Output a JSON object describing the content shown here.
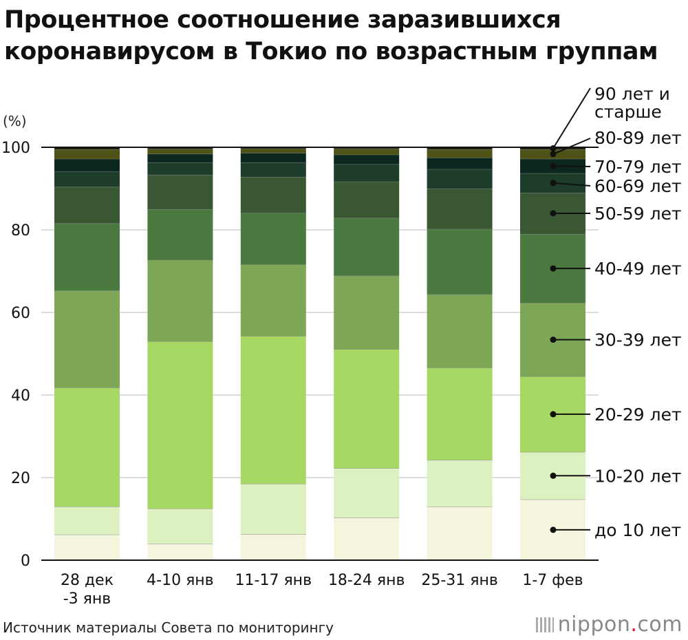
{
  "title_lines": [
    "Процентное соотношение заразившихся",
    "коронавирусом в Токио по возрастным группам"
  ],
  "source": "Источник материалы Совета по мониторингу",
  "logo": {
    "name": "nippon",
    "dot": ".",
    "suffix": "com"
  },
  "chart_data": {
    "type": "stacked-bar",
    "ylabel": "(%)",
    "ylim": [
      0,
      100
    ],
    "yticks": [
      0,
      20,
      40,
      60,
      80,
      100
    ],
    "grid": true,
    "legend": "right, inline labels",
    "categories": [
      [
        "28 дек",
        "-3 янв"
      ],
      [
        "4-10 янв"
      ],
      [
        "11-17 янв"
      ],
      [
        "18-24 янв"
      ],
      [
        "25-31 янв"
      ],
      [
        "1-7 фев"
      ]
    ],
    "series": [
      {
        "name": "до 10 лет",
        "color": "#f5f4dc",
        "values": [
          6.2,
          4.0,
          6.3,
          10.3,
          13.0,
          14.7
        ]
      },
      {
        "name": "10-20 лет",
        "color": "#ddf0c0",
        "values": [
          6.8,
          8.5,
          12.2,
          12.0,
          11.3,
          11.5
        ]
      },
      {
        "name": "20-29 лет",
        "color": "#a8d864",
        "values": [
          28.8,
          40.5,
          35.8,
          28.8,
          22.3,
          18.3
        ]
      },
      {
        "name": "30-39 лет",
        "color": "#7da756",
        "values": [
          23.5,
          19.7,
          17.3,
          17.8,
          17.8,
          17.8
        ]
      },
      {
        "name": "40-49 лет",
        "color": "#4a7a3f",
        "values": [
          16.3,
          12.3,
          12.5,
          14.0,
          15.8,
          16.7
        ]
      },
      {
        "name": "50-59 лет",
        "color": "#385732",
        "values": [
          8.8,
          8.3,
          8.7,
          8.8,
          9.8,
          10.0
        ]
      },
      {
        "name": "60-69 лет",
        "color": "#1d3d2a",
        "values": [
          3.7,
          3.0,
          3.5,
          4.2,
          4.7,
          4.7
        ]
      },
      {
        "name": "70-79 лет",
        "color": "#0c2720",
        "values": [
          3.1,
          2.1,
          2.3,
          2.3,
          2.8,
          3.5
        ]
      },
      {
        "name": "80-89 лет",
        "color": "#4f5216",
        "values": [
          2.3,
          1.2,
          1.1,
          1.5,
          2.0,
          2.3
        ]
      },
      {
        "name": "90 лет и старше",
        "color": "#1d1f10",
        "values": [
          0.5,
          0.4,
          0.3,
          0.3,
          0.5,
          0.5
        ]
      }
    ],
    "legend_labels": [
      {
        "series": "90 лет и старше",
        "lines": [
          "90 лет и",
          "старше"
        ]
      },
      {
        "series": "80-89 лет",
        "lines": [
          "80-89 лет"
        ]
      },
      {
        "series": "70-79 лет",
        "lines": [
          "70-79 лет"
        ]
      },
      {
        "series": "60-69 лет",
        "lines": [
          "60-69 лет"
        ]
      },
      {
        "series": "50-59 лет",
        "lines": [
          "50-59 лет"
        ]
      },
      {
        "series": "40-49 лет",
        "lines": [
          "40-49 лет"
        ]
      },
      {
        "series": "30-39 лет",
        "lines": [
          "30-39 лет"
        ]
      },
      {
        "series": "20-29 лет",
        "lines": [
          "20-29 лет"
        ]
      },
      {
        "series": "10-20 лет",
        "lines": [
          "10-20 лет"
        ]
      },
      {
        "series": "до 10 лет",
        "lines": [
          "до 10 лет"
        ]
      }
    ]
  }
}
